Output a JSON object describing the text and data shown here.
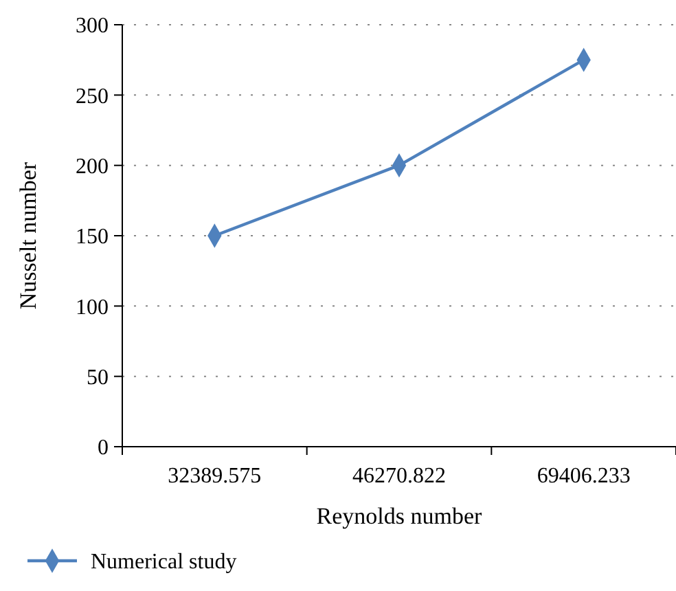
{
  "chart_data": {
    "type": "line",
    "xlabel": "Reynolds number",
    "ylabel": "Nusselt number",
    "categories": [
      "32389.575",
      "46270.822",
      "69406.233"
    ],
    "series": [
      {
        "name": "Numerical study",
        "color": "#4f81bd",
        "values": [
          150,
          200,
          275
        ]
      }
    ],
    "ylim": [
      0,
      300
    ],
    "yticks": [
      0,
      50,
      100,
      150,
      200,
      250,
      300
    ],
    "grid": "y",
    "legend": "bottom left",
    "marker": "diamond"
  }
}
